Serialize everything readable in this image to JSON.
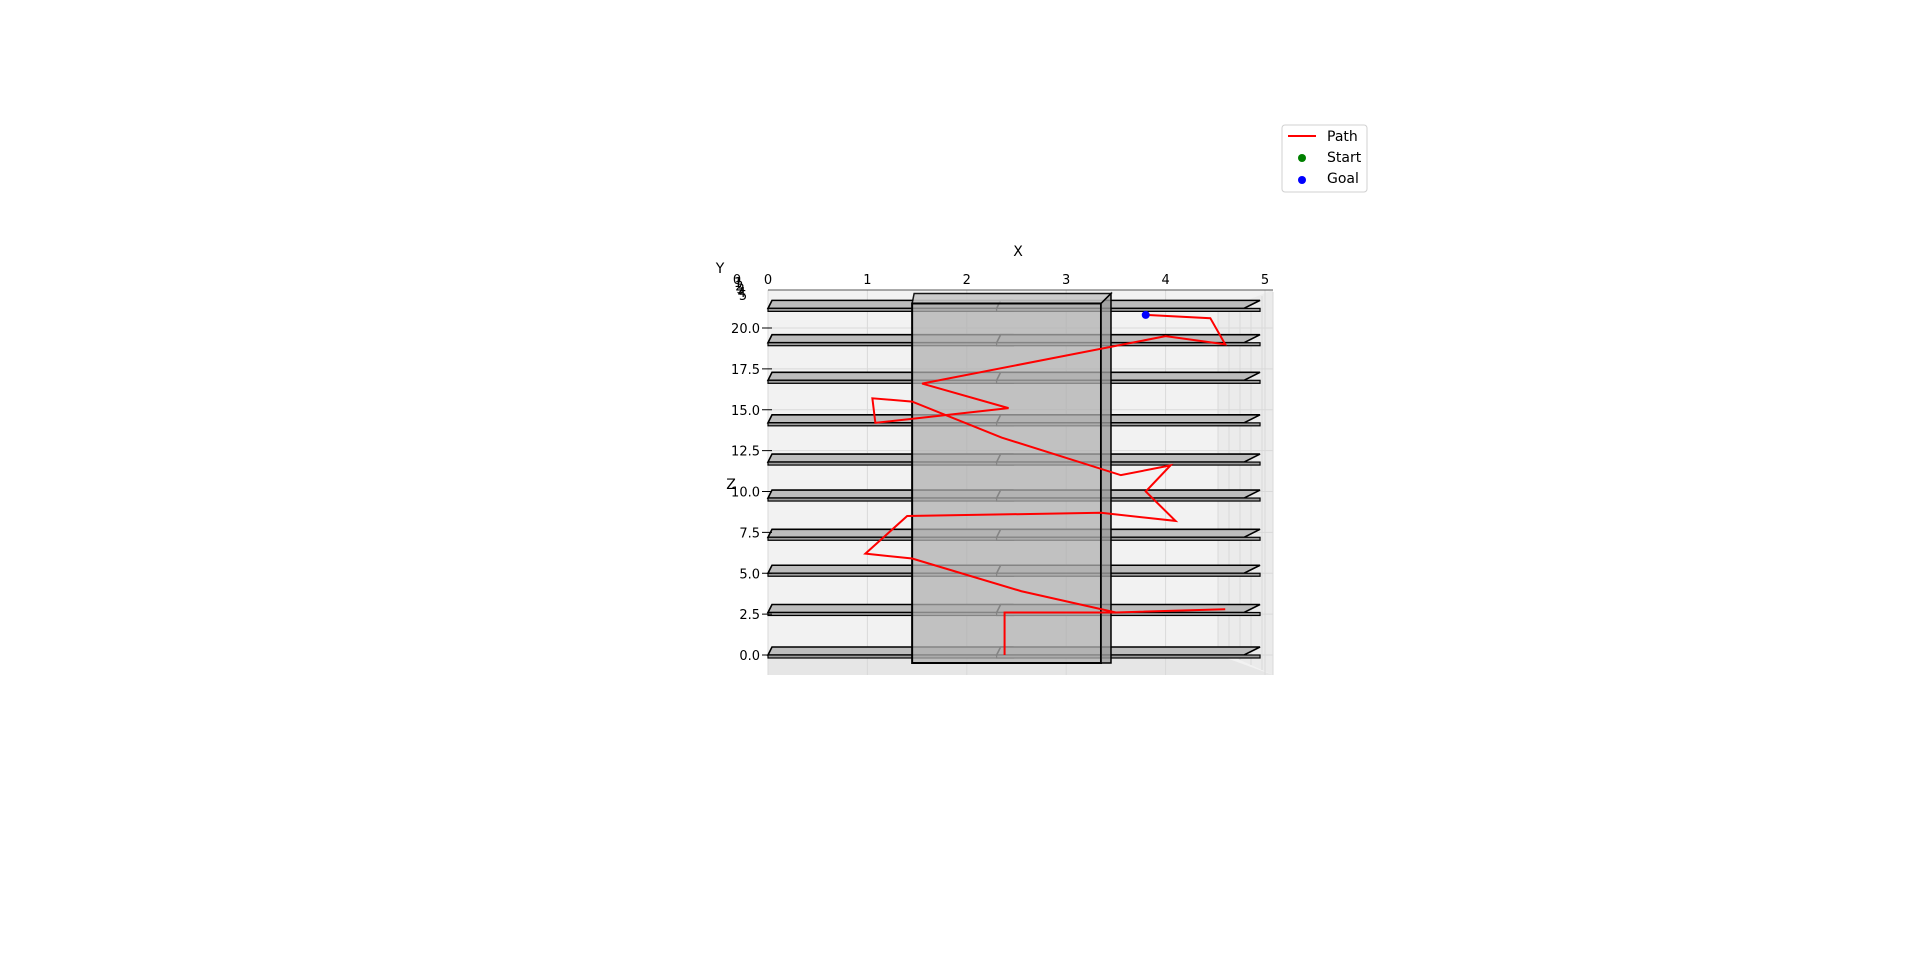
{
  "chart_data": {
    "type": "line",
    "projection": "3d",
    "xlabel": "X",
    "ylabel": "Y",
    "zlabel": "Z",
    "xlim": [
      0,
      5
    ],
    "zlim": [
      0,
      21.5
    ],
    "x_ticks": [
      "0",
      "1",
      "2",
      "3",
      "4",
      "5"
    ],
    "y_ticks": [
      "0",
      "1",
      "2",
      "3",
      "4",
      "5"
    ],
    "z_ticks": [
      "0.0",
      "2.5",
      "5.0",
      "7.5",
      "10.0",
      "12.5",
      "15.0",
      "17.5",
      "20.0"
    ],
    "grid": true,
    "legend_placement": "top-right",
    "legend": [
      {
        "label": "Path",
        "kind": "line",
        "color": "#ff0000"
      },
      {
        "label": "Start",
        "kind": "marker",
        "color": "#008000"
      },
      {
        "label": "Goal",
        "kind": "marker",
        "color": "#0000ff"
      }
    ],
    "series": [
      {
        "name": "Path",
        "color": "#ff0000",
        "points_xz": [
          [
            2.38,
            0.0
          ],
          [
            2.38,
            2.6
          ],
          [
            2.7,
            2.6
          ],
          [
            3.5,
            2.6
          ],
          [
            4.6,
            2.8
          ],
          [
            3.5,
            2.6
          ],
          [
            2.55,
            3.9
          ],
          [
            1.45,
            5.9
          ],
          [
            0.98,
            6.2
          ],
          [
            1.4,
            8.5
          ],
          [
            3.35,
            8.7
          ],
          [
            4.1,
            8.2
          ],
          [
            3.8,
            10.0
          ],
          [
            4.05,
            11.6
          ],
          [
            3.55,
            11.0
          ],
          [
            2.35,
            13.3
          ],
          [
            1.45,
            15.5
          ],
          [
            1.05,
            15.7
          ],
          [
            1.08,
            14.2
          ],
          [
            2.42,
            15.1
          ],
          [
            1.55,
            16.6
          ],
          [
            4.0,
            19.5
          ],
          [
            4.6,
            19.0
          ],
          [
            4.45,
            20.6
          ],
          [
            3.8,
            20.8
          ]
        ]
      }
    ],
    "goal": {
      "x": 3.8,
      "z": 20.8,
      "color": "#0000ff"
    },
    "start": {
      "x": 2.38,
      "z": 0.0,
      "color": "#008000"
    },
    "shelves": [
      {
        "z": 0.0,
        "side": "left"
      },
      {
        "z": 0.0,
        "side": "right"
      },
      {
        "z": 2.6,
        "side": "left"
      },
      {
        "z": 2.6,
        "side": "right"
      },
      {
        "z": 5.0,
        "side": "left"
      },
      {
        "z": 5.0,
        "side": "right"
      },
      {
        "z": 7.2,
        "side": "left"
      },
      {
        "z": 7.2,
        "side": "right"
      },
      {
        "z": 9.6,
        "side": "left"
      },
      {
        "z": 9.6,
        "side": "right"
      },
      {
        "z": 11.8,
        "side": "left"
      },
      {
        "z": 11.8,
        "side": "right"
      },
      {
        "z": 14.2,
        "side": "left"
      },
      {
        "z": 14.2,
        "side": "right"
      },
      {
        "z": 16.8,
        "side": "left"
      },
      {
        "z": 16.8,
        "side": "right"
      },
      {
        "z": 19.1,
        "side": "left"
      },
      {
        "z": 19.1,
        "side": "right"
      },
      {
        "z": 21.2,
        "side": "left"
      },
      {
        "z": 21.2,
        "side": "right"
      }
    ],
    "pillar": {
      "x_range": [
        1.45,
        3.35
      ],
      "z_range": [
        0,
        21.5
      ],
      "color": "#b0b0b0"
    }
  }
}
